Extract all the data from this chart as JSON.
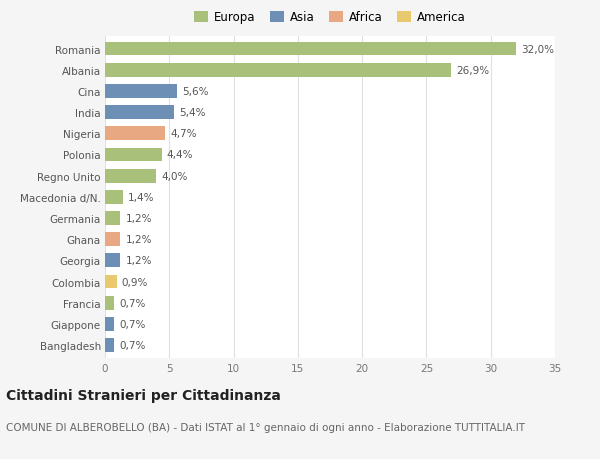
{
  "categories": [
    "Romania",
    "Albania",
    "Cina",
    "India",
    "Nigeria",
    "Polonia",
    "Regno Unito",
    "Macedonia d/N.",
    "Germania",
    "Ghana",
    "Georgia",
    "Colombia",
    "Francia",
    "Giappone",
    "Bangladesh"
  ],
  "values": [
    32.0,
    26.9,
    5.6,
    5.4,
    4.7,
    4.4,
    4.0,
    1.4,
    1.2,
    1.2,
    1.2,
    0.9,
    0.7,
    0.7,
    0.7
  ],
  "labels": [
    "32,0%",
    "26,9%",
    "5,6%",
    "5,4%",
    "4,7%",
    "4,4%",
    "4,0%",
    "1,4%",
    "1,2%",
    "1,2%",
    "1,2%",
    "0,9%",
    "0,7%",
    "0,7%",
    "0,7%"
  ],
  "continents": [
    "Europa",
    "Europa",
    "Asia",
    "Asia",
    "Africa",
    "Europa",
    "Europa",
    "Europa",
    "Europa",
    "Africa",
    "Asia",
    "America",
    "Europa",
    "Asia",
    "Asia"
  ],
  "colors": {
    "Europa": "#a8c07a",
    "Asia": "#6e8fb5",
    "Africa": "#e8a882",
    "America": "#e8c96e"
  },
  "legend_items": [
    "Europa",
    "Asia",
    "Africa",
    "America"
  ],
  "xlim": [
    0,
    35
  ],
  "xticks": [
    0,
    5,
    10,
    15,
    20,
    25,
    30,
    35
  ],
  "title": "Cittadini Stranieri per Cittadinanza",
  "subtitle": "COMUNE DI ALBEROBELLO (BA) - Dati ISTAT al 1° gennaio di ogni anno - Elaborazione TUTTITALIA.IT",
  "background_color": "#f5f5f5",
  "plot_bg_color": "#ffffff",
  "grid_color": "#e0e0e0",
  "bar_height": 0.65,
  "title_fontsize": 10,
  "subtitle_fontsize": 7.5,
  "label_fontsize": 7.5,
  "tick_fontsize": 7.5,
  "legend_fontsize": 8.5
}
